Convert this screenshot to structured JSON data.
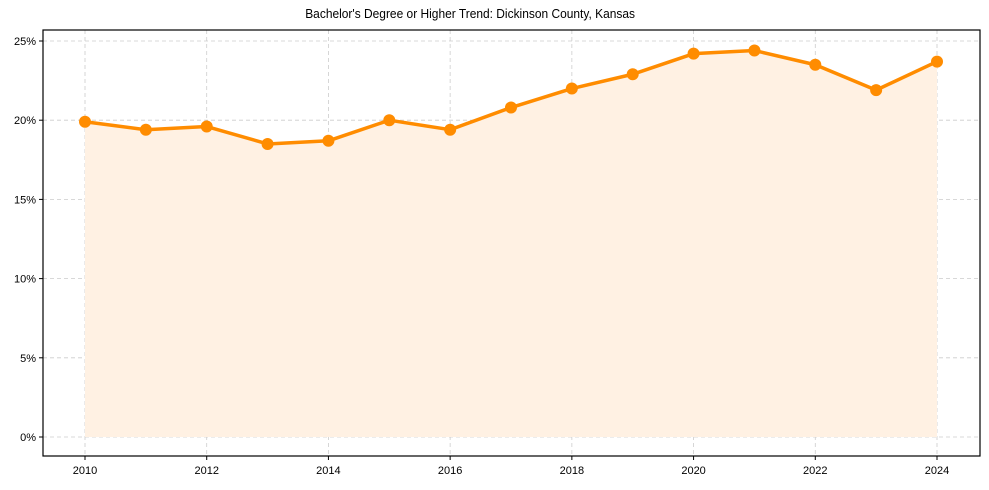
{
  "chart_data": {
    "type": "line",
    "title": "Bachelor's Degree or Higher Trend: Dickinson County, Kansas",
    "xlabel": "",
    "ylabel": "",
    "x": [
      2010,
      2011,
      2012,
      2013,
      2014,
      2015,
      2016,
      2017,
      2018,
      2019,
      2020,
      2021,
      2022,
      2023,
      2024
    ],
    "series": [
      {
        "name": "Bachelor's Degree or Higher",
        "values": [
          19.9,
          19.4,
          19.6,
          18.5,
          18.7,
          20.0,
          19.4,
          20.8,
          22.0,
          22.9,
          24.2,
          24.4,
          23.5,
          21.9,
          23.7
        ],
        "unit": "%",
        "line_color": "#FF8C00",
        "fill_color": "#FFF1E3",
        "marker": "circle"
      }
    ],
    "x_ticks": [
      2010,
      2012,
      2014,
      2016,
      2018,
      2020,
      2022,
      2024
    ],
    "x_tick_labels": [
      "2010",
      "2012",
      "2014",
      "2016",
      "2018",
      "2020",
      "2022",
      "2024"
    ],
    "y_ticks": [
      0,
      5,
      10,
      15,
      20,
      25
    ],
    "y_tick_labels": [
      "0%",
      "5%",
      "10%",
      "15%",
      "20%",
      "25%"
    ],
    "ylim": [
      -1.2,
      25.7
    ],
    "xlim": [
      2009.3,
      2024.7
    ],
    "grid": true,
    "grid_style": "dashed",
    "legend": "none",
    "area_fill": true
  }
}
